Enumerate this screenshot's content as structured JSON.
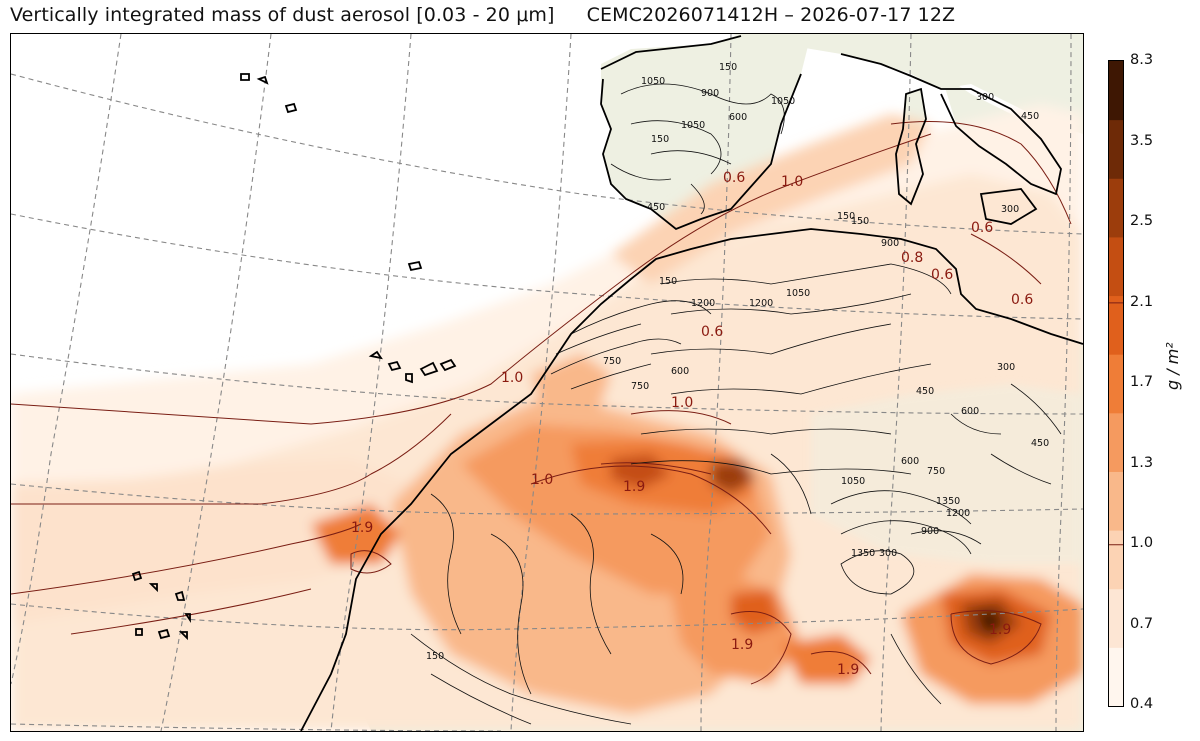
{
  "header": {
    "title": "Vertically integrated mass of dust aerosol [0.03 - 20 μm]",
    "run_info": "CEMC2026071412H – 2026-07-17 12Z"
  },
  "colorbar": {
    "units": "g / m²",
    "ticks": [
      "8.3",
      "3.5",
      "2.5",
      "2.1",
      "1.7",
      "1.3",
      "1.0",
      "0.7",
      "0.4"
    ],
    "colors": [
      "#fff6ee",
      "#fde6d4",
      "#fcd3b4",
      "#f9b88a",
      "#f59a5f",
      "#ef7d37",
      "#e0601c",
      "#c44e12",
      "#9c3d0c",
      "#6e2a07",
      "#3e1703"
    ]
  },
  "contour_labels": {
    "dust": [
      "1.0",
      "0.6",
      "0.8",
      "1.0",
      "0.6",
      "1.0",
      "1.9",
      "1.0",
      "0.6",
      "1.9",
      "1.9",
      "1.9",
      "1.9",
      "0.6",
      "0.6"
    ],
    "terrain": [
      "150",
      "1050",
      "900",
      "600",
      "1050",
      "1050",
      "150",
      "300",
      "450",
      "150",
      "300",
      "900",
      "1050",
      "1200",
      "1200",
      "750",
      "600",
      "450",
      "300",
      "600",
      "450",
      "1050",
      "1350",
      "1200",
      "900",
      "750",
      "600",
      "150",
      "1350",
      "300",
      "150",
      "450",
      "150",
      "750"
    ]
  }
}
